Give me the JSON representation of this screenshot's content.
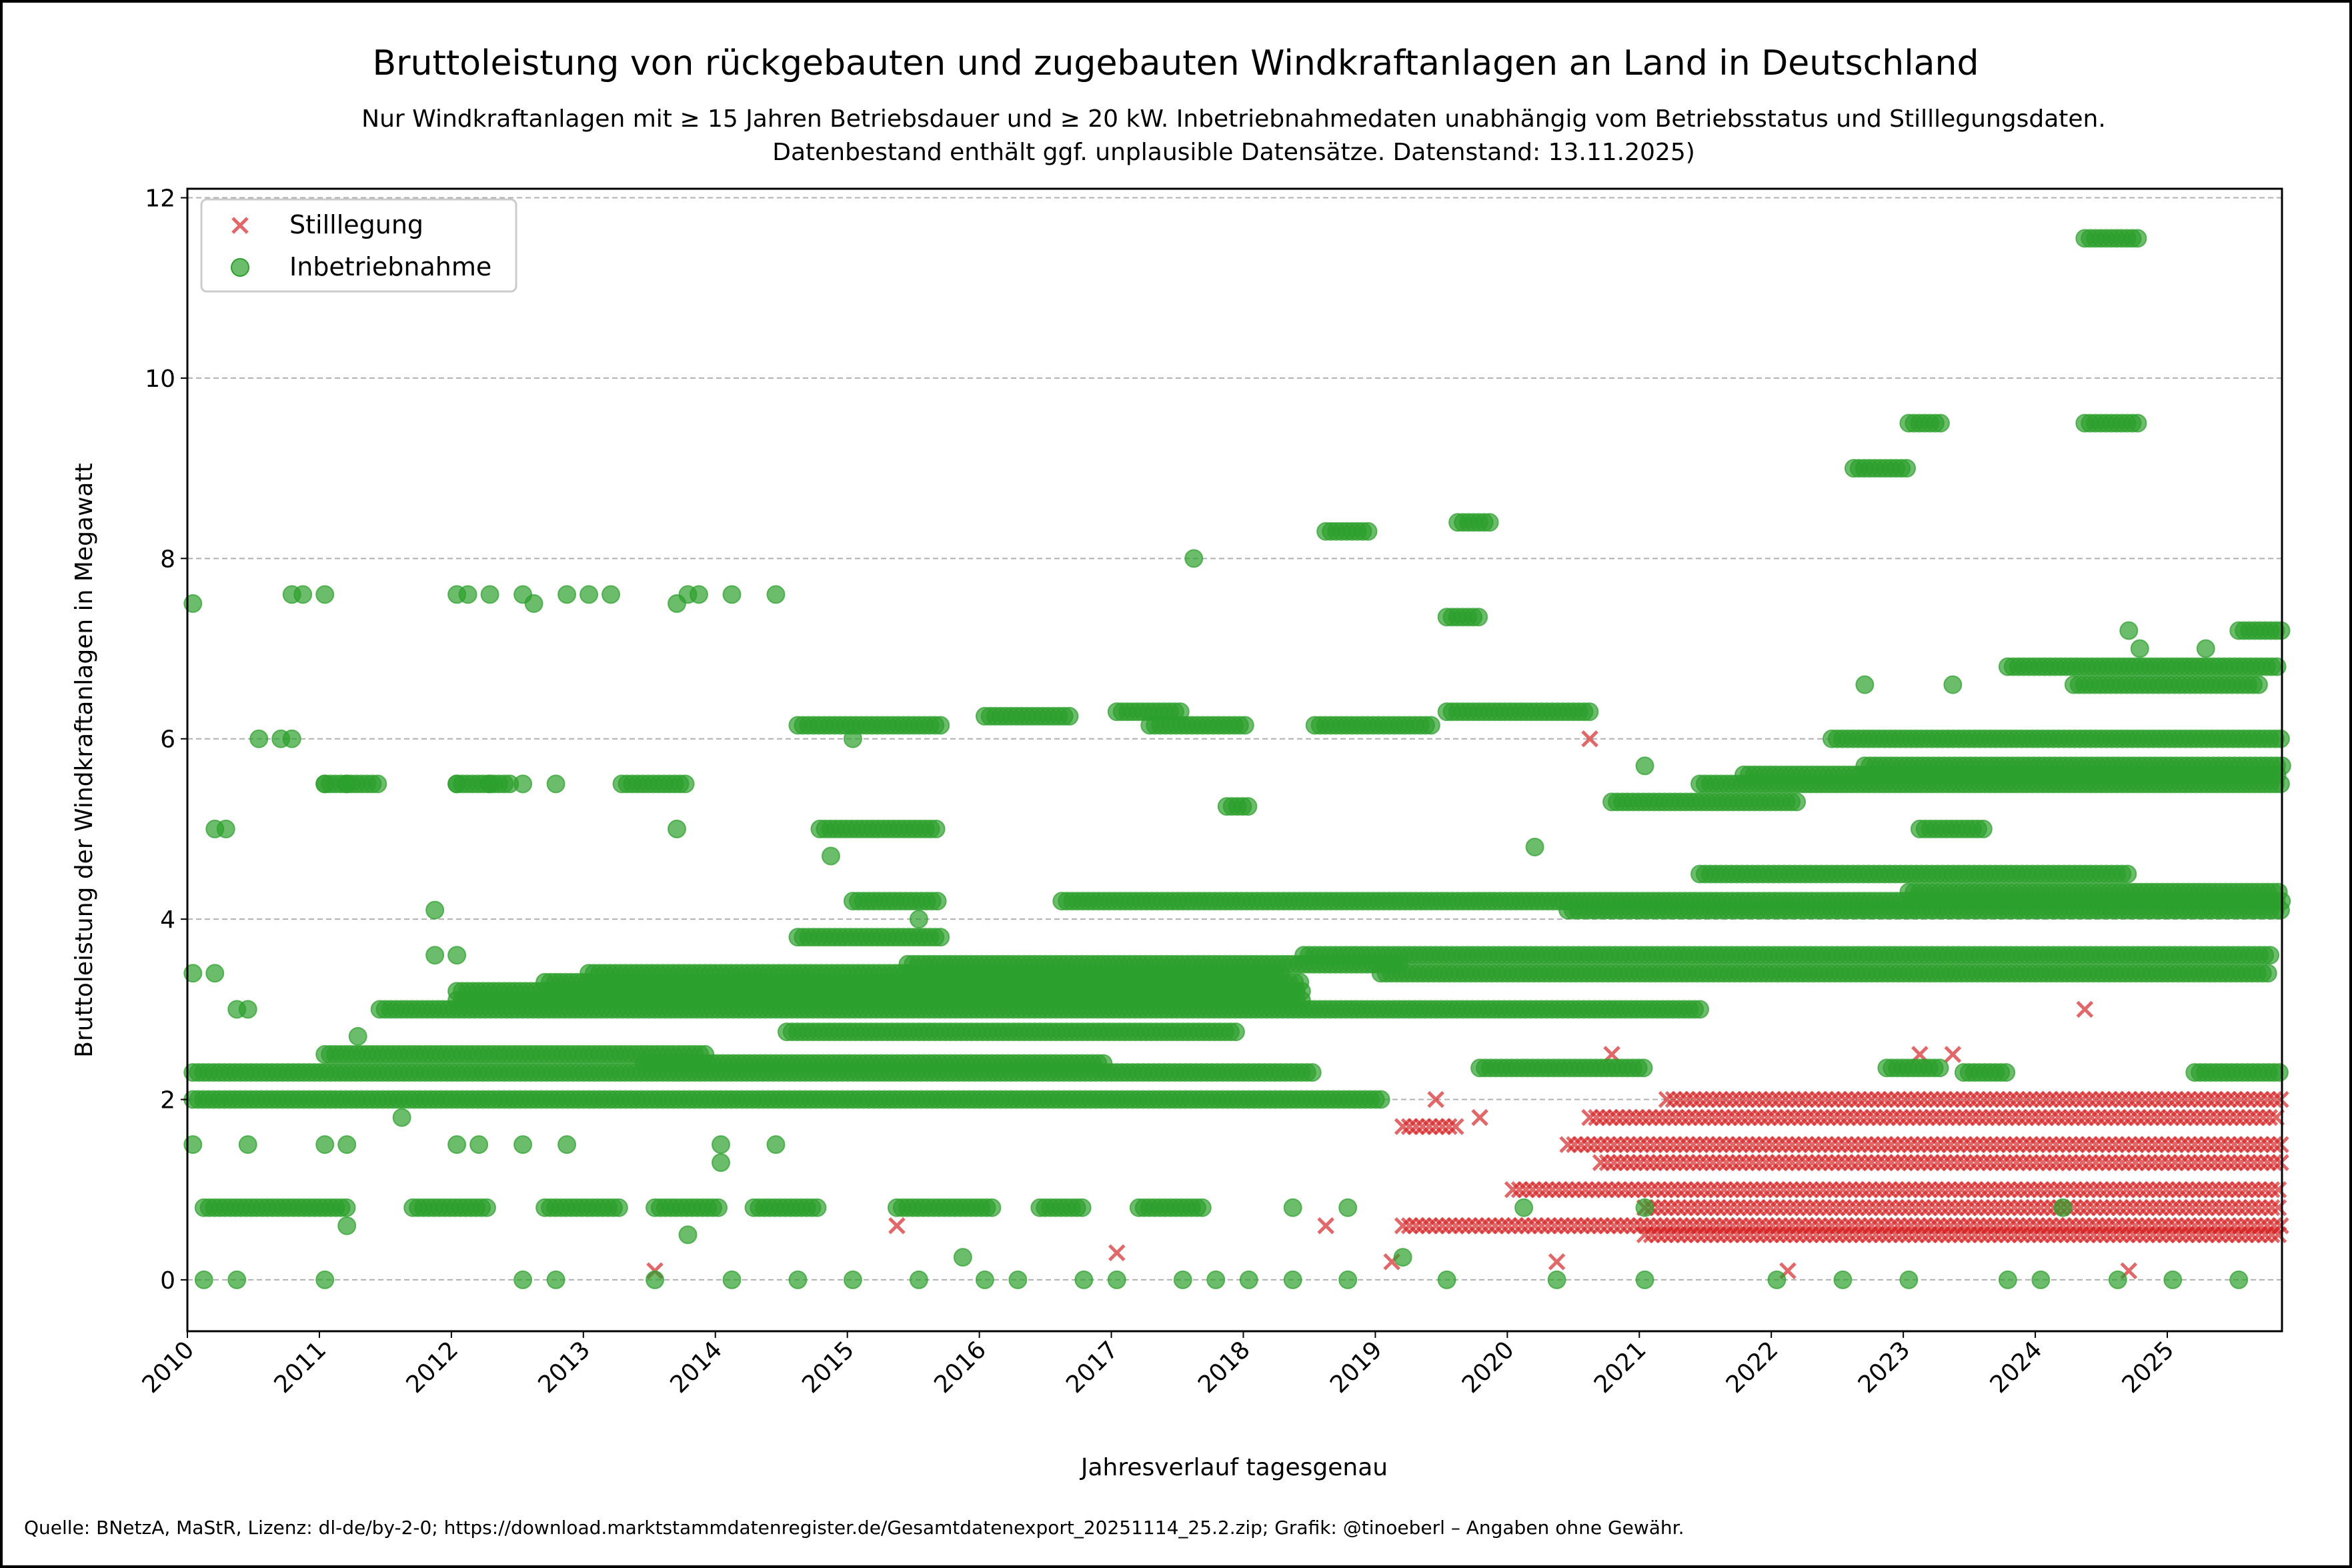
{
  "chart_data": {
    "type": "scatter",
    "title": "Bruttoleistung von rückgebauten und zugebauten Windkraftanlagen an Land in Deutschland",
    "subtitle_lines": [
      "Nur Windkraftanlagen mit ≥ 15 Jahren Betriebsdauer und ≥ 20 kW. Inbetriebnahmedaten unabhängig vom Betriebsstatus und Stilllegungsdaten.",
      "Datenbestand enthält ggf. unplausible Datensätze. Datenstand: 13.11.2025)"
    ],
    "xlabel": "Jahresverlauf tagesgenau",
    "ylabel": "Bruttoleistung der Windkraftanlagen in Megawatt",
    "xlim": [
      "2010-01",
      "2025-11"
    ],
    "ylim": [
      -0.57,
      12.1
    ],
    "x_ticks": [
      "2010",
      "2011",
      "2012",
      "2013",
      "2014",
      "2015",
      "2016",
      "2017",
      "2018",
      "2019",
      "2020",
      "2021",
      "2022",
      "2023",
      "2024",
      "2025"
    ],
    "y_ticks": [
      0,
      2,
      4,
      6,
      8,
      10,
      12
    ],
    "grid": "horizontal dashed",
    "legend_position": "top-left",
    "series": [
      {
        "name": "Stilllegung",
        "marker": "x",
        "color": "#d62728",
        "runs": [
          [
            0.6,
            "2019-03",
            "2025-11"
          ],
          [
            1.0,
            "2020-01",
            "2025-11"
          ],
          [
            1.5,
            "2020-06",
            "2025-11"
          ],
          [
            1.8,
            "2020-08",
            "2025-11"
          ],
          [
            2.0,
            "2021-03",
            "2025-11"
          ],
          [
            0.5,
            "2021-01",
            "2025-11"
          ],
          [
            1.3,
            "2020-09",
            "2025-11"
          ],
          [
            0.8,
            "2021-01",
            "2025-11"
          ],
          [
            1.7,
            "2019-03",
            "2019-08"
          ]
        ],
        "points": [
          [
            "2013-07",
            0.1
          ],
          [
            "2015-05",
            0.6
          ],
          [
            "2017-01",
            0.3
          ],
          [
            "2018-08",
            0.6
          ],
          [
            "2020-08",
            6.0
          ],
          [
            "2024-05",
            3.0
          ],
          [
            "2023-02",
            2.5
          ],
          [
            "2023-05",
            2.5
          ],
          [
            "2019-10",
            1.8
          ],
          [
            "2019-06",
            2.0
          ],
          [
            "2019-02",
            0.2
          ],
          [
            "2020-05",
            0.2
          ],
          [
            "2022-02",
            0.1
          ],
          [
            "2024-09",
            0.1
          ],
          [
            "2020-10",
            2.5
          ]
        ]
      },
      {
        "name": "Inbetriebnahme",
        "marker": "o",
        "color": "#2ca02c",
        "runs": [
          [
            2.0,
            "2010-01",
            "2019-01"
          ],
          [
            2.3,
            "2010-01",
            "2018-07"
          ],
          [
            2.4,
            "2013-06",
            "2016-12"
          ],
          [
            0.8,
            "2010-02",
            "2011-03"
          ],
          [
            0.8,
            "2011-09",
            "2012-04"
          ],
          [
            0.8,
            "2012-09",
            "2013-04"
          ],
          [
            0.8,
            "2013-07",
            "2014-01"
          ],
          [
            0.8,
            "2014-04",
            "2014-10"
          ],
          [
            0.8,
            "2015-05",
            "2016-02"
          ],
          [
            0.8,
            "2016-06",
            "2016-10"
          ],
          [
            0.8,
            "2017-03",
            "2017-09"
          ],
          [
            2.5,
            "2011-01",
            "2013-12"
          ],
          [
            3.0,
            "2011-06",
            "2021-06"
          ],
          [
            3.1,
            "2012-01",
            "2018-06"
          ],
          [
            3.2,
            "2012-01",
            "2018-06"
          ],
          [
            3.3,
            "2012-09",
            "2018-06"
          ],
          [
            3.4,
            "2013-01",
            "2018-04"
          ],
          [
            3.5,
            "2015-06",
            "2019-03"
          ],
          [
            3.6,
            "2018-06",
            "2025-10"
          ],
          [
            3.4,
            "2019-01",
            "2025-10"
          ],
          [
            2.75,
            "2014-07",
            "2017-12"
          ],
          [
            4.2,
            "2016-08",
            "2025-11"
          ],
          [
            4.1,
            "2020-06",
            "2025-11"
          ],
          [
            4.3,
            "2023-01",
            "2025-11"
          ],
          [
            5.5,
            "2011-01",
            "2011-06"
          ],
          [
            5.5,
            "2012-01",
            "2012-06"
          ],
          [
            5.5,
            "2013-04",
            "2013-10"
          ],
          [
            5.3,
            "2020-10",
            "2022-03"
          ],
          [
            5.5,
            "2021-06",
            "2025-11"
          ],
          [
            5.6,
            "2021-10",
            "2025-11"
          ],
          [
            5.7,
            "2022-09",
            "2025-11"
          ],
          [
            6.0,
            "2022-06",
            "2025-11"
          ],
          [
            6.15,
            "2014-08",
            "2015-09"
          ],
          [
            6.25,
            "2016-01",
            "2016-09"
          ],
          [
            6.3,
            "2017-01",
            "2017-07"
          ],
          [
            6.15,
            "2017-04",
            "2018-01"
          ],
          [
            6.15,
            "2018-07",
            "2019-06"
          ],
          [
            6.3,
            "2019-07",
            "2020-08"
          ],
          [
            6.8,
            "2023-10",
            "2025-11"
          ],
          [
            6.6,
            "2024-04",
            "2025-09"
          ],
          [
            7.2,
            "2025-07",
            "2025-11"
          ],
          [
            5.0,
            "2014-10",
            "2015-09"
          ],
          [
            5.0,
            "2023-02",
            "2023-08"
          ],
          [
            3.8,
            "2014-08",
            "2015-09"
          ],
          [
            4.2,
            "2015-01",
            "2015-09"
          ],
          [
            4.5,
            "2021-06",
            "2024-09"
          ],
          [
            5.25,
            "2017-11",
            "2018-01"
          ],
          [
            8.3,
            "2018-08",
            "2018-12"
          ],
          [
            8.4,
            "2019-08",
            "2019-11"
          ],
          [
            7.35,
            "2019-07",
            "2019-10"
          ],
          [
            9.0,
            "2022-08",
            "2023-01"
          ],
          [
            9.5,
            "2023-01",
            "2023-04"
          ],
          [
            9.5,
            "2024-05",
            "2024-10"
          ],
          [
            11.55,
            "2024-05",
            "2024-10"
          ],
          [
            2.35,
            "2019-10",
            "2021-01"
          ],
          [
            2.35,
            "2022-11",
            "2023-04"
          ],
          [
            2.3,
            "2023-06",
            "2023-10"
          ],
          [
            2.3,
            "2025-03",
            "2025-11"
          ]
        ],
        "points": [
          [
            "2010-10",
            7.6
          ],
          [
            "2010-11",
            7.6
          ],
          [
            "2011-01",
            7.6
          ],
          [
            "2012-01",
            7.6
          ],
          [
            "2012-02",
            7.6
          ],
          [
            "2012-04",
            7.6
          ],
          [
            "2012-07",
            7.6
          ],
          [
            "2012-08",
            7.5
          ],
          [
            "2012-11",
            7.6
          ],
          [
            "2013-01",
            7.6
          ],
          [
            "2013-03",
            7.6
          ],
          [
            "2013-09",
            7.5
          ],
          [
            "2013-10",
            7.6
          ],
          [
            "2013-11",
            7.6
          ],
          [
            "2014-02",
            7.6
          ],
          [
            "2014-06",
            7.6
          ],
          [
            "2010-01",
            7.5
          ],
          [
            "2010-03",
            5.0
          ],
          [
            "2010-04",
            5.0
          ],
          [
            "2013-09",
            5.0
          ],
          [
            "2010-07",
            6.0
          ],
          [
            "2010-09",
            6.0
          ],
          [
            "2010-10",
            6.0
          ],
          [
            "2011-01",
            5.5
          ],
          [
            "2011-03",
            5.5
          ],
          [
            "2012-01",
            5.5
          ],
          [
            "2012-04",
            5.5
          ],
          [
            "2012-07",
            5.5
          ],
          [
            "2012-10",
            5.5
          ],
          [
            "2010-01",
            3.4
          ],
          [
            "2010-03",
            3.4
          ],
          [
            "2010-05",
            3.0
          ],
          [
            "2010-06",
            3.0
          ],
          [
            "2010-01",
            1.5
          ],
          [
            "2010-06",
            1.5
          ],
          [
            "2011-01",
            1.5
          ],
          [
            "2011-03",
            1.5
          ],
          [
            "2012-01",
            1.5
          ],
          [
            "2012-03",
            1.5
          ],
          [
            "2012-07",
            1.5
          ],
          [
            "2012-11",
            1.5
          ],
          [
            "2014-01",
            1.5
          ],
          [
            "2014-06",
            1.5
          ],
          [
            "2010-02",
            0.0
          ],
          [
            "2010-05",
            0.0
          ],
          [
            "2011-01",
            0.0
          ],
          [
            "2012-07",
            0.0
          ],
          [
            "2012-10",
            0.0
          ],
          [
            "2013-07",
            0.0
          ],
          [
            "2014-02",
            0.0
          ],
          [
            "2014-08",
            0.0
          ],
          [
            "2015-01",
            0.0
          ],
          [
            "2015-07",
            0.0
          ],
          [
            "2016-01",
            0.0
          ],
          [
            "2016-04",
            0.0
          ],
          [
            "2016-10",
            0.0
          ],
          [
            "2017-01",
            0.0
          ],
          [
            "2017-07",
            0.0
          ],
          [
            "2017-10",
            0.0
          ],
          [
            "2018-01",
            0.0
          ],
          [
            "2018-05",
            0.0
          ],
          [
            "2018-10",
            0.0
          ],
          [
            "2019-07",
            0.0
          ],
          [
            "2020-05",
            0.0
          ],
          [
            "2021-01",
            0.0
          ],
          [
            "2022-01",
            0.0
          ],
          [
            "2022-07",
            0.0
          ],
          [
            "2023-01",
            0.0
          ],
          [
            "2023-10",
            0.0
          ],
          [
            "2024-01",
            0.0
          ],
          [
            "2024-08",
            0.0
          ],
          [
            "2025-01",
            0.0
          ],
          [
            "2025-07",
            0.0
          ],
          [
            "2011-11",
            4.1
          ],
          [
            "2011-11",
            3.6
          ],
          [
            "2012-01",
            3.6
          ],
          [
            "2011-08",
            1.8
          ],
          [
            "2011-03",
            0.6
          ],
          [
            "2011-04",
            2.7
          ],
          [
            "2013-10",
            0.5
          ],
          [
            "2014-01",
            1.3
          ],
          [
            "2014-11",
            4.7
          ],
          [
            "2015-07",
            4.0
          ],
          [
            "2017-08",
            8.0
          ],
          [
            "2015-01",
            6.0
          ],
          [
            "2021-01",
            5.7
          ],
          [
            "2022-09",
            6.6
          ],
          [
            "2023-05",
            6.6
          ],
          [
            "2024-10",
            7.0
          ],
          [
            "2025-04",
            7.0
          ],
          [
            "2024-09",
            7.2
          ],
          [
            "2020-03",
            4.8
          ],
          [
            "2018-05",
            0.8
          ],
          [
            "2018-10",
            0.8
          ],
          [
            "2020-02",
            0.8
          ],
          [
            "2021-01",
            0.8
          ],
          [
            "2024-03",
            0.8
          ],
          [
            "2015-11",
            0.25
          ],
          [
            "2019-03",
            0.25
          ]
        ]
      }
    ]
  },
  "footer": {
    "source": "Quelle: BNetzA, MaStR, Lizenz: dl-de/by-2-0; https://download.marktstammdatenregister.de/Gesamtdatenexport_20251114_25.2.zip; Grafik: @tinoeberl – Angaben ohne Gewähr."
  }
}
